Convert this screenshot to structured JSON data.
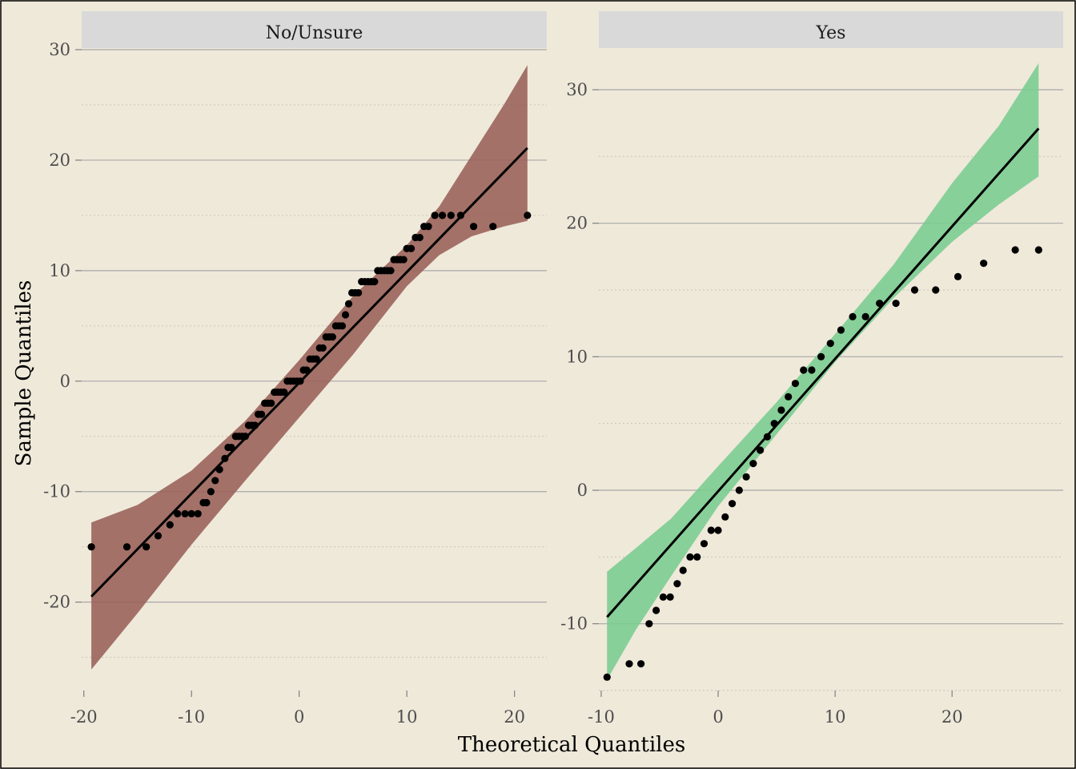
{
  "chart_data": {
    "type": "scatter",
    "xlabel": "Theoretical Quantiles",
    "ylabel": "Sample Quantiles",
    "panels": [
      {
        "strip": "No/Unsure",
        "band_color": "#996058",
        "xlim": [
          -20.2,
          23
        ],
        "ylim": [
          -28,
          30
        ],
        "xticks": [
          -20,
          -10,
          0,
          10,
          20
        ],
        "xtick_labels": [
          "-20",
          "-10",
          "0",
          "10",
          "20"
        ],
        "yticks": [
          -20,
          -10,
          0,
          10,
          20,
          30
        ],
        "ytick_labels": [
          "-20",
          "-10",
          "0",
          "10",
          "20",
          "30"
        ],
        "ref_line": {
          "x": [
            -19.3,
            21.2
          ],
          "y": [
            -19.5,
            21.1
          ]
        },
        "band": {
          "x": [
            -19.3,
            -15,
            -10,
            -5,
            0,
            5,
            10,
            13,
            16,
            19,
            21.2
          ],
          "lower": [
            -26.1,
            -21.0,
            -14.8,
            -9.0,
            -3.3,
            2.4,
            8.6,
            11.4,
            13.1,
            14.0,
            14.5
          ],
          "upper": [
            -12.8,
            -11.2,
            -8.1,
            -3.6,
            1.9,
            7.7,
            12.3,
            15.8,
            20.4,
            25.0,
            28.6
          ]
        },
        "points": {
          "x": [
            -19.3,
            -16,
            -14.2,
            -13.1,
            -12,
            -11.3,
            -10.6,
            -10,
            -9.4,
            -8.9,
            -8.6,
            -8.2,
            -7.8,
            -7.4,
            -6.9,
            -6.6,
            -6.3,
            -5.9,
            -5.6,
            -5.3,
            -5,
            -4.7,
            -4.4,
            -4.1,
            -3.8,
            -3.5,
            -3.2,
            -2.9,
            -2.6,
            -2.3,
            -2,
            -1.7,
            -1.4,
            -1.1,
            -0.8,
            -0.5,
            -0.2,
            0.1,
            0.4,
            0.7,
            1,
            1.3,
            1.6,
            1.9,
            2.2,
            2.5,
            2.8,
            3.1,
            3.4,
            3.7,
            4,
            4.3,
            4.6,
            4.9,
            5.2,
            5.5,
            5.8,
            6.1,
            6.4,
            6.7,
            7,
            7.3,
            7.6,
            7.9,
            8.2,
            8.5,
            8.8,
            9.1,
            9.4,
            9.7,
            10,
            10.4,
            10.8,
            11.2,
            11.6,
            12,
            12.6,
            13.3,
            14.1,
            15,
            16.2,
            18,
            21.2
          ],
          "y": [
            -15,
            -15,
            -15,
            -14,
            -13,
            -12,
            -12,
            -12,
            -12,
            -11,
            -11,
            -10,
            -9,
            -8,
            -7,
            -6,
            -6,
            -5,
            -5,
            -5,
            -5,
            -4,
            -4,
            -4,
            -3,
            -3,
            -2,
            -2,
            -2,
            -1,
            -1,
            -1,
            -1,
            0,
            0,
            0,
            0,
            0,
            1,
            1,
            2,
            2,
            2,
            3,
            3,
            4,
            4,
            4,
            5,
            5,
            5,
            6,
            7,
            8,
            8,
            8,
            9,
            9,
            9,
            9,
            9,
            10,
            10,
            10,
            10,
            10,
            11,
            11,
            11,
            11,
            12,
            12,
            13,
            13,
            14,
            14,
            15,
            15,
            15,
            15,
            14,
            14,
            15
          ]
        }
      },
      {
        "strip": "Yes",
        "band_color": "#7acc8f",
        "xlim": [
          -10.2,
          29.5
        ],
        "ylim": [
          -15,
          33
        ],
        "xticks": [
          -10,
          0,
          10,
          20
        ],
        "xtick_labels": [
          "-10",
          "0",
          "10",
          "20"
        ],
        "yticks": [
          -10,
          0,
          10,
          20,
          30
        ],
        "ytick_labels": [
          "-10",
          "0",
          "10",
          "20",
          "30"
        ],
        "ref_line": {
          "x": [
            -9.5,
            27.4
          ],
          "y": [
            -9.5,
            27.1
          ]
        },
        "band": {
          "x": [
            -9.5,
            -7,
            -4,
            0,
            5,
            10,
            15,
            20,
            24,
            27.4
          ],
          "lower": [
            -14.2,
            -10.4,
            -6.4,
            -1.2,
            4.2,
            9.6,
            14.4,
            18.6,
            21.4,
            23.5
          ],
          "upper": [
            -6.1,
            -4.3,
            -2.1,
            1.8,
            6.6,
            11.7,
            16.9,
            23.0,
            27.3,
            32.0
          ]
        },
        "points": {
          "x": [
            -9.5,
            -7.6,
            -6.6,
            -5.9,
            -5.3,
            -4.7,
            -4.1,
            -3.5,
            -3.0,
            -2.4,
            -1.8,
            -1.2,
            -0.6,
            0.0,
            0.6,
            1.2,
            1.8,
            2.4,
            3.0,
            3.6,
            4.2,
            4.8,
            5.4,
            6.0,
            6.6,
            7.3,
            8.0,
            8.8,
            9.6,
            10.5,
            11.5,
            12.6,
            13.8,
            15.2,
            16.8,
            18.6,
            20.5,
            22.7,
            25.4,
            27.4
          ],
          "y": [
            -14,
            -13,
            -13,
            -10,
            -9,
            -8,
            -8,
            -7,
            -6,
            -5,
            -5,
            -4,
            -3,
            -3,
            -2,
            -1,
            0,
            1,
            2,
            3,
            4,
            5,
            6,
            7,
            8,
            9,
            9,
            10,
            11,
            12,
            13,
            13,
            14,
            14,
            15,
            15,
            16,
            17,
            18,
            18
          ]
        }
      }
    ]
  }
}
